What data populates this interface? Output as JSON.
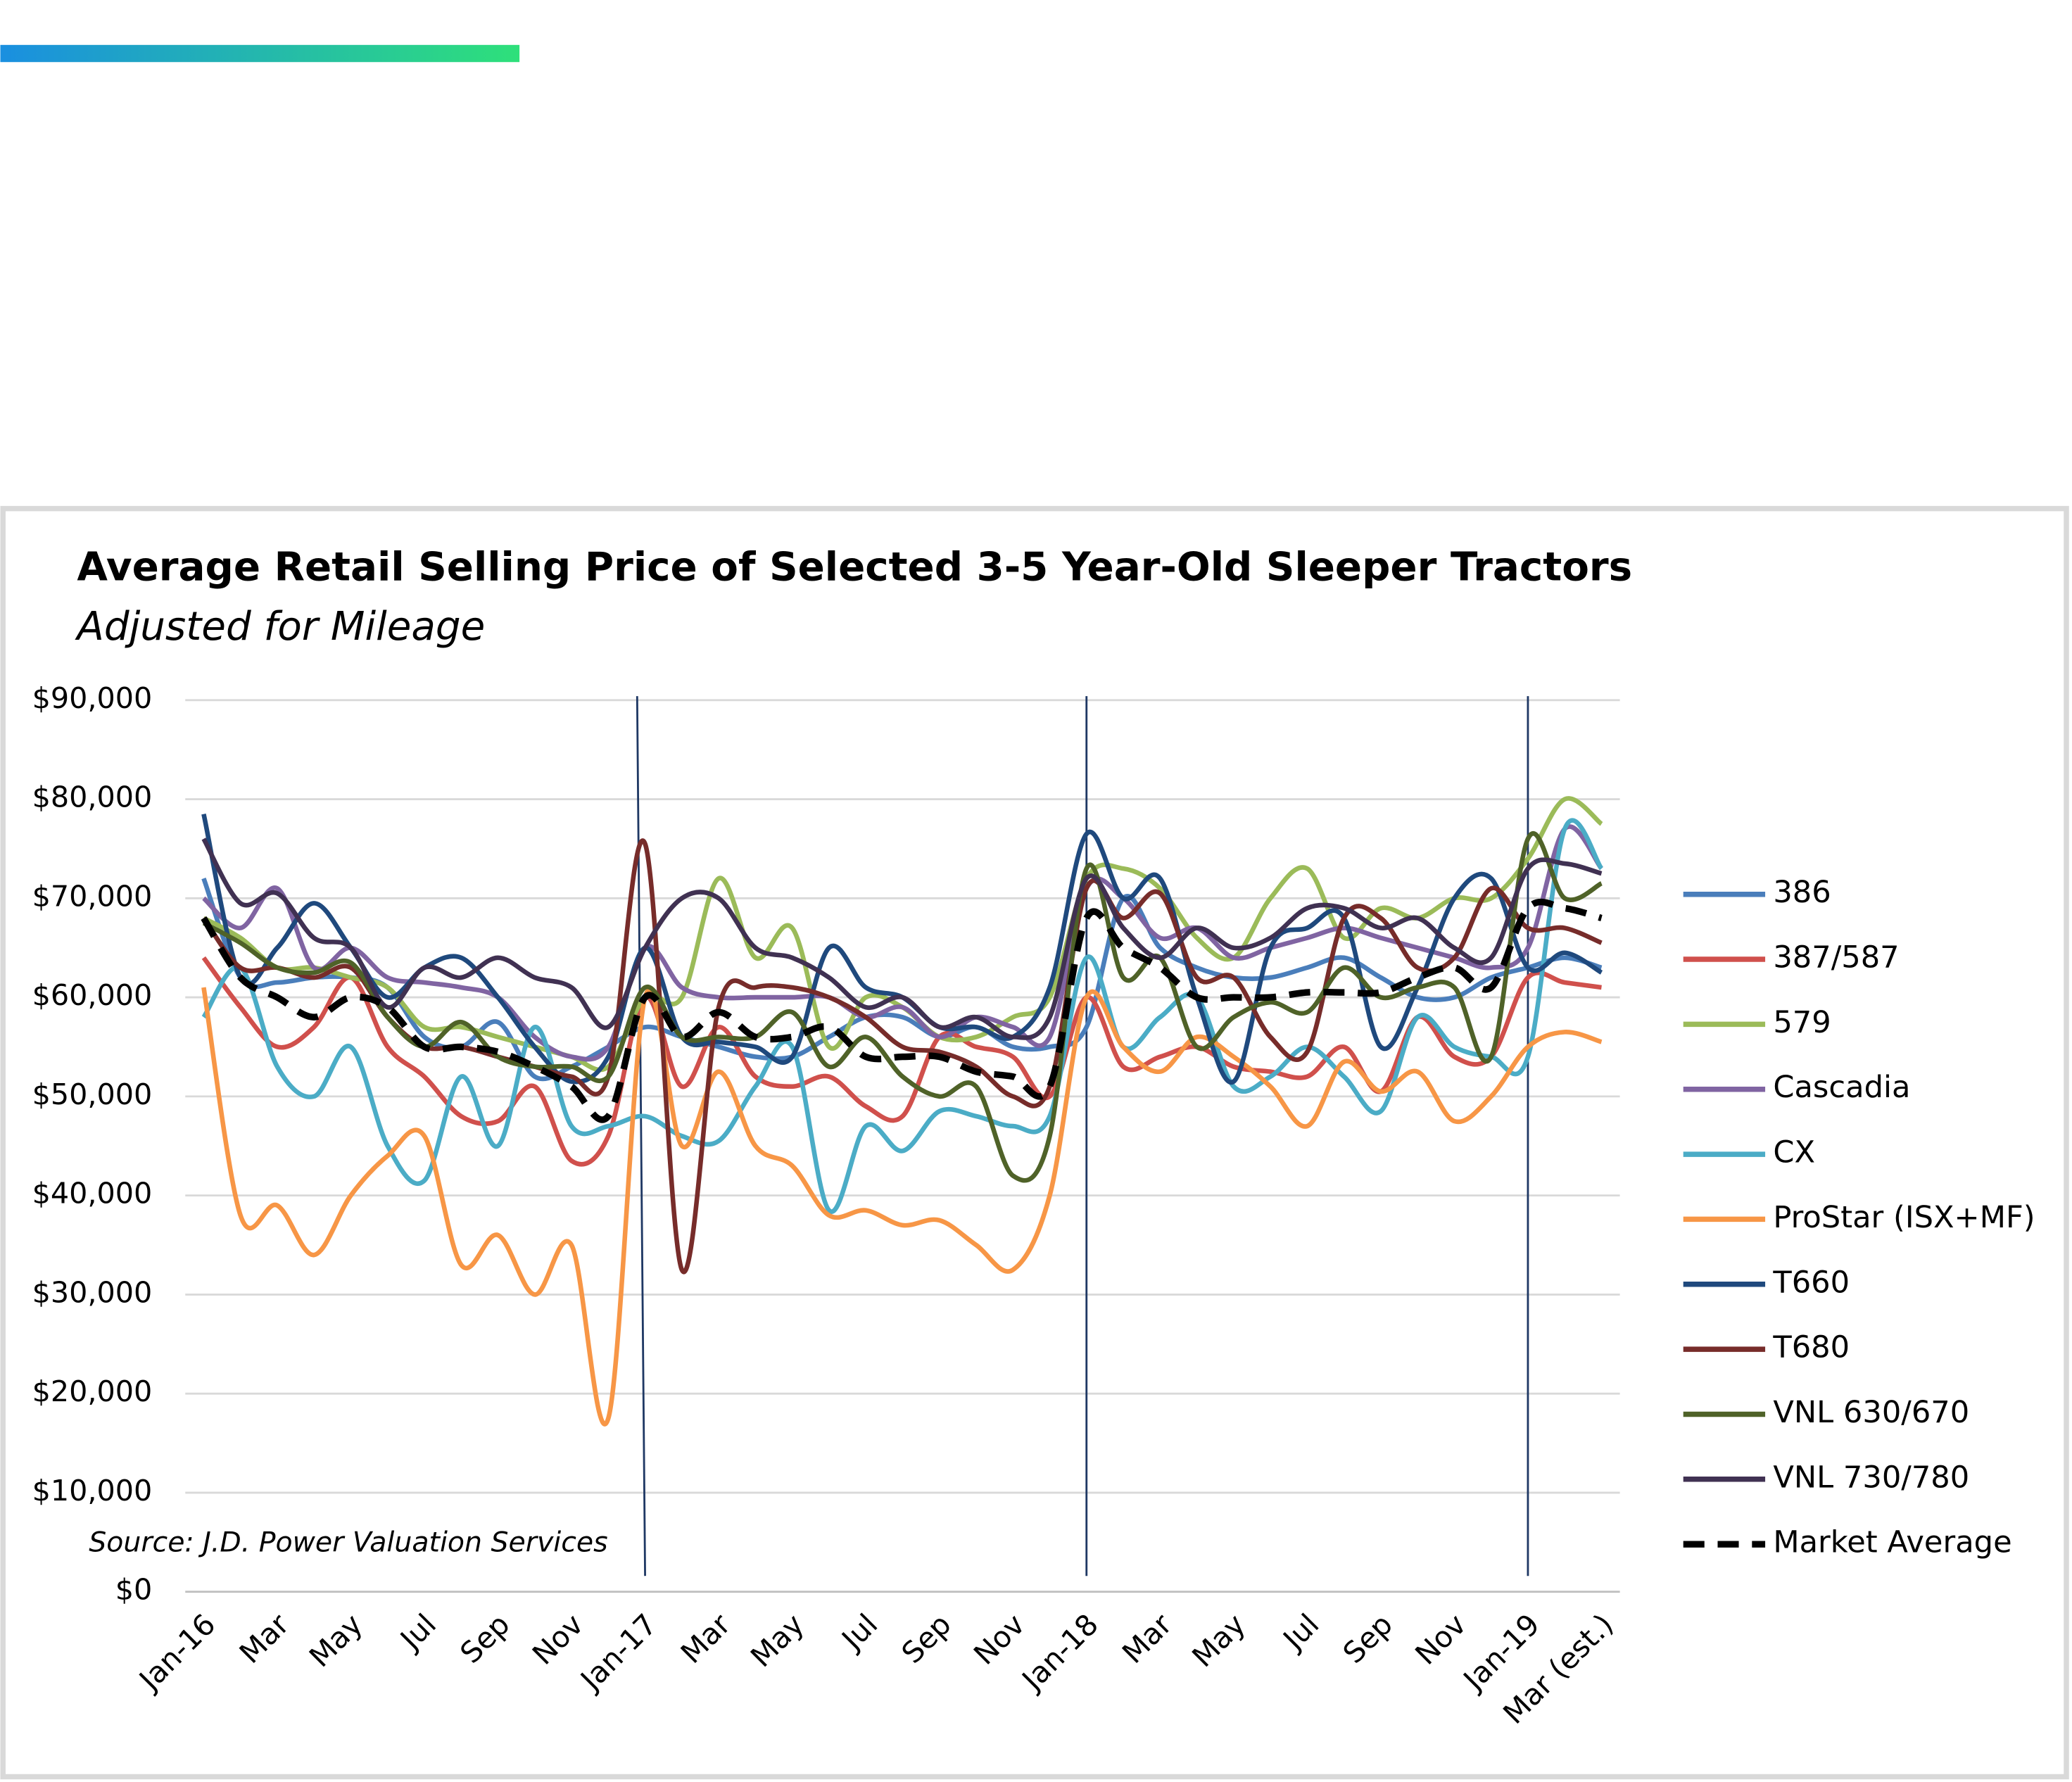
{
  "chart_data": {
    "type": "line",
    "title": "Average Retail Selling Price of Selected 3-5 Year-Old Sleeper Tractors",
    "subtitle": "Adjusted for Mileage",
    "source": "Source: J.D. Power Valuation Services",
    "categories": [
      "Jan-16",
      null,
      "Mar",
      null,
      "May",
      null,
      "Jul",
      null,
      "Sep",
      null,
      "Nov",
      null,
      "Jan-17",
      null,
      "Mar",
      null,
      "May",
      null,
      "Jul",
      null,
      "Sep",
      null,
      "Nov",
      null,
      "Jan-18",
      null,
      "Mar",
      null,
      "May",
      null,
      "Jul",
      null,
      "Sep",
      null,
      "Nov",
      null,
      "Jan-19",
      null,
      "Mar (est.)"
    ],
    "year_breaks": [
      12,
      24,
      36
    ],
    "ylim": [
      0,
      90000
    ],
    "yticks": [
      {
        "value": 0,
        "label": "$0"
      },
      {
        "value": 10000,
        "label": "$10,000"
      },
      {
        "value": 20000,
        "label": "$20,000"
      },
      {
        "value": 30000,
        "label": "$30,000"
      },
      {
        "value": 40000,
        "label": "$40,000"
      },
      {
        "value": 50000,
        "label": "$50,000"
      },
      {
        "value": 60000,
        "label": "$60,000"
      },
      {
        "value": 70000,
        "label": "$70,000"
      },
      {
        "value": 80000,
        "label": "$80,000"
      },
      {
        "value": 90000,
        "label": "$90,000"
      }
    ],
    "grid": true,
    "legend": "right",
    "series": [
      {
        "name": "386",
        "color": "#4a7ebb",
        "values": [
          72000,
          62000,
          61500,
          62000,
          62000,
          61000,
          56000,
          55000,
          57500,
          52000,
          53000,
          55000,
          57000,
          56000,
          55000,
          54000,
          54000,
          56000,
          58000,
          58000,
          56000,
          57000,
          55000,
          55000,
          57000,
          70000,
          65000,
          63000,
          62000,
          62000,
          63000,
          64000,
          62000,
          60000,
          60000,
          62000,
          63000,
          64000,
          63000
        ]
      },
      {
        "name": "387/587",
        "color": "#d0504c",
        "values": [
          64000,
          59000,
          55000,
          57000,
          62000,
          55000,
          52000,
          48000,
          47500,
          51000,
          43500,
          46000,
          60000,
          51000,
          57000,
          52000,
          51000,
          52000,
          49000,
          48000,
          56000,
          55000,
          54000,
          50000,
          60000,
          53000,
          54000,
          55000,
          53000,
          52500,
          52000,
          55000,
          50500,
          58000,
          54000,
          54000,
          62000,
          61500,
          61000
        ]
      },
      {
        "name": "579",
        "color": "#9bbb59",
        "values": [
          68000,
          66000,
          63000,
          63000,
          62000,
          61000,
          57000,
          57000,
          56000,
          55000,
          54000,
          53000,
          60000,
          60000,
          72000,
          64000,
          67000,
          55000,
          60000,
          59000,
          56000,
          56000,
          58000,
          60000,
          72000,
          73000,
          71000,
          66000,
          64000,
          70000,
          73000,
          66000,
          69000,
          68000,
          70000,
          70000,
          74000,
          80000,
          77500
        ]
      },
      {
        "name": "Cascadia",
        "color": "#8064a2",
        "values": [
          70000,
          67000,
          71000,
          63000,
          65000,
          62000,
          61500,
          61000,
          60000,
          56000,
          54000,
          55000,
          65000,
          61000,
          60000,
          60000,
          60000,
          60000,
          58000,
          59000,
          56000,
          58000,
          57000,
          56000,
          71000,
          70000,
          66000,
          67000,
          64000,
          65000,
          66000,
          67000,
          66000,
          65000,
          64000,
          63000,
          65000,
          77000,
          73000
        ]
      },
      {
        "name": "CX",
        "color": "#4bacc6",
        "values": [
          58000,
          63000,
          53000,
          50000,
          55000,
          45000,
          41500,
          52000,
          45000,
          57000,
          47000,
          47000,
          48000,
          46000,
          45500,
          51000,
          55000,
          38500,
          47000,
          44500,
          48500,
          48000,
          47000,
          48000,
          64000,
          55000,
          58000,
          60000,
          51000,
          52000,
          55000,
          52000,
          48500,
          58000,
          55000,
          54000,
          54000,
          77000,
          73000
        ]
      },
      {
        "name": "ProStar (ISX+MF)",
        "color": "#f79646",
        "values": [
          61000,
          38000,
          39000,
          34000,
          40000,
          44000,
          46000,
          33000,
          36000,
          30000,
          35000,
          17500,
          60000,
          45000,
          52500,
          45000,
          43000,
          38000,
          38500,
          37000,
          37500,
          35000,
          32500,
          40000,
          60000,
          55000,
          52500,
          56000,
          54000,
          51000,
          47000,
          53500,
          50500,
          52500,
          47500,
          50000,
          55000,
          56500,
          55500
        ]
      },
      {
        "name": "T660",
        "color": "#1f497d",
        "values": [
          78500,
          62000,
          65000,
          69500,
          65000,
          60000,
          63000,
          64000,
          60000,
          55000,
          51500,
          54000,
          65000,
          56000,
          55500,
          55000,
          54000,
          65000,
          61000,
          60000,
          57000,
          57000,
          56000,
          61000,
          76500,
          70000,
          72000,
          60000,
          51500,
          65000,
          67000,
          68000,
          55000,
          61000,
          70000,
          72000,
          63000,
          64500,
          62500
        ]
      },
      {
        "name": "T680",
        "color": "#772c2a",
        "values": [
          68000,
          63000,
          63000,
          62000,
          63000,
          58000,
          55000,
          55000,
          54000,
          53000,
          52000,
          52000,
          75500,
          32500,
          59000,
          61000,
          61000,
          60000,
          58000,
          55000,
          54500,
          53000,
          50000,
          51000,
          71000,
          68000,
          70500,
          62000,
          62000,
          56000,
          54500,
          68000,
          68000,
          63000,
          64000,
          71000,
          67000,
          67000,
          65500
        ]
      },
      {
        "name": "VNL 630/670",
        "color": "#4f6228",
        "values": [
          67500,
          65500,
          63000,
          62500,
          63500,
          58000,
          55000,
          57500,
          54000,
          53000,
          53000,
          52000,
          61000,
          56000,
          56000,
          56000,
          58500,
          53000,
          56000,
          52000,
          50000,
          51000,
          42000,
          46000,
          73000,
          62000,
          64000,
          55000,
          58000,
          59500,
          58500,
          63000,
          60000,
          61000,
          61000,
          54000,
          76000,
          70000,
          71500
        ]
      },
      {
        "name": "VNL 730/780",
        "color": "#403152",
        "values": [
          76000,
          69500,
          70500,
          66000,
          65000,
          59000,
          63000,
          62000,
          64000,
          62000,
          61000,
          57000,
          65000,
          70000,
          70000,
          65000,
          64000,
          62000,
          59000,
          60000,
          57000,
          58000,
          56000,
          58000,
          72000,
          67000,
          64000,
          67000,
          65000,
          66000,
          69000,
          69000,
          67000,
          68000,
          65000,
          64000,
          73000,
          73500,
          72500
        ]
      },
      {
        "name": "Market Average",
        "color": "#000000",
        "dashed": true,
        "values": [
          68000,
          62000,
          60000,
          58000,
          60000,
          59000,
          55000,
          55000,
          54500,
          53000,
          51000,
          48000,
          60000,
          56000,
          58500,
          56000,
          56000,
          57000,
          54000,
          54000,
          54000,
          52500,
          52000,
          51000,
          68000,
          65000,
          63000,
          60000,
          60000,
          60000,
          60500,
          60500,
          60500,
          62000,
          63000,
          61000,
          69000,
          69000,
          68000
        ]
      }
    ]
  }
}
